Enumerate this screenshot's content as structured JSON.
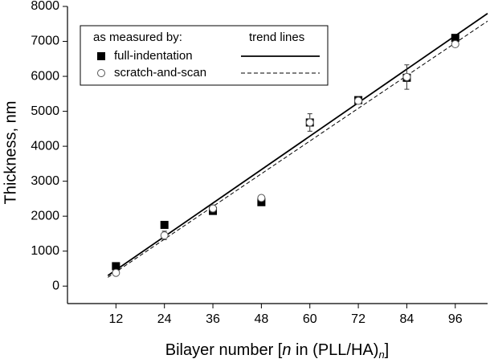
{
  "chart_data": {
    "type": "scatter",
    "ylabel": "Thickness, nm",
    "xlabel": [
      "Bilayer number [",
      "n",
      " in (PLL/HA)",
      "n",
      "]"
    ],
    "xlim": [
      0,
      104
    ],
    "xticks": [
      12,
      24,
      36,
      48,
      60,
      72,
      84,
      96
    ],
    "ylim": [
      -500,
      8000
    ],
    "yticks": [
      0,
      1000,
      2000,
      3000,
      4000,
      5000,
      6000,
      7000,
      8000
    ],
    "legend_heading": "as measured by:",
    "legend_trend_heading": "trend lines",
    "x": [
      12,
      24,
      36,
      48,
      60,
      72,
      84,
      96
    ],
    "series": [
      {
        "name": "full-indentation",
        "color": "#000000",
        "marker": "square",
        "values": [
          570,
          1750,
          2150,
          2400,
          4680,
          5320,
          5960,
          7100
        ],
        "errors": [
          40,
          60,
          60,
          40,
          100,
          60,
          100,
          60
        ],
        "trend": {
          "x": [
            10,
            104
          ],
          "values": [
            300,
            7800
          ],
          "dashed": false
        }
      },
      {
        "name": "scratch-and-scan",
        "color": "#555555",
        "marker": "circle",
        "values": [
          380,
          1450,
          2220,
          2520,
          4680,
          5300,
          5980,
          6920
        ],
        "errors": [
          60,
          120,
          100,
          50,
          250,
          60,
          350,
          80
        ],
        "trend": {
          "x": [
            10,
            104
          ],
          "values": [
            250,
            7580
          ],
          "dashed": true
        }
      }
    ]
  }
}
